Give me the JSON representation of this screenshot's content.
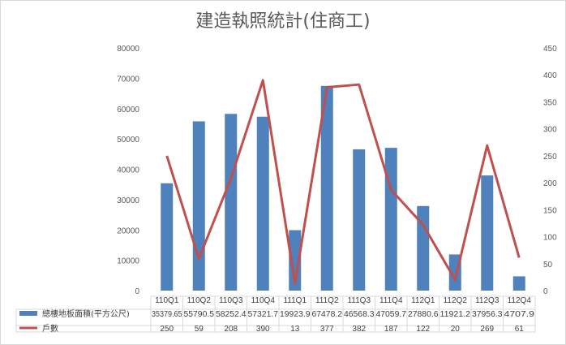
{
  "chart_data": {
    "type": "bar",
    "title": "建造執照統計(住商工)",
    "categories": [
      "110Q1",
      "110Q2",
      "110Q3",
      "110Q4",
      "111Q1",
      "111Q2",
      "111Q3",
      "111Q4",
      "112Q1",
      "112Q2",
      "112Q3",
      "112Q4"
    ],
    "series": [
      {
        "name": "總樓地板面積(平方公尺)",
        "type": "bar",
        "axis": "left",
        "color": "#4f81bd",
        "values": [
          35379.65,
          55790.5,
          58252.4,
          57321.7,
          19923.9,
          67478.2,
          46568.3,
          47059.7,
          27880.6,
          11921.2,
          37956.3,
          4707.9
        ],
        "labels": [
          "35379.65",
          "55790.5",
          "58252.4",
          "57321.7",
          "19923.9",
          "67478.2",
          "46568.3",
          "47059.7",
          "27880.6",
          "11921.2",
          "37956.3",
          "4707.9"
        ]
      },
      {
        "name": "戶數",
        "type": "line",
        "axis": "right",
        "color": "#c0504d",
        "values": [
          250,
          59,
          208,
          390,
          13,
          377,
          382,
          187,
          122,
          20,
          269,
          61
        ],
        "labels": [
          "250",
          "59",
          "208",
          "390",
          "13",
          "377",
          "382",
          "187",
          "122",
          "20",
          "269",
          "61"
        ]
      }
    ],
    "y_left": {
      "ylim": [
        0,
        80000
      ],
      "ticks": [
        "0",
        "10000",
        "20000",
        "30000",
        "40000",
        "50000",
        "60000",
        "70000",
        "80000"
      ]
    },
    "y_right": {
      "ylim": [
        0,
        450
      ],
      "ticks": [
        "0",
        "50",
        "100",
        "150",
        "200",
        "250",
        "300",
        "350",
        "400",
        "450"
      ]
    },
    "grid": false,
    "legend": "data-table-below"
  }
}
